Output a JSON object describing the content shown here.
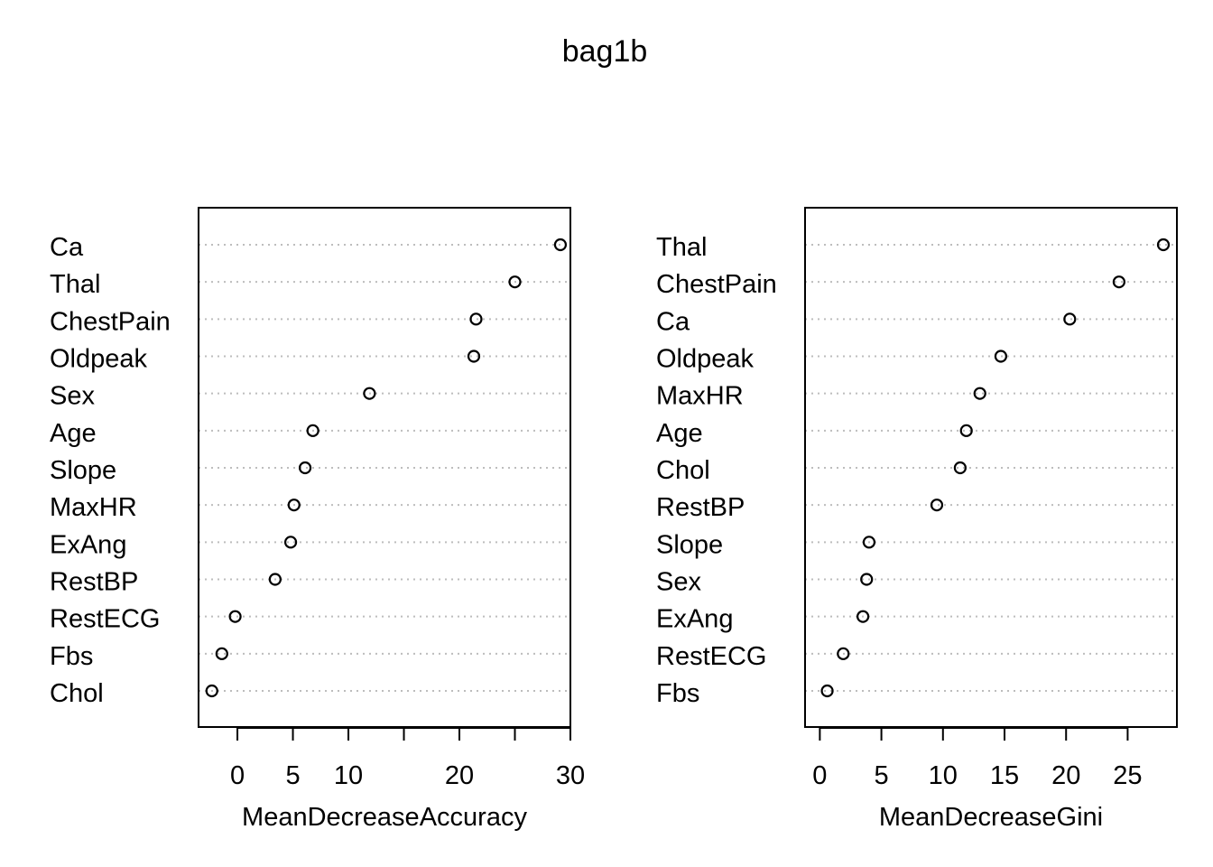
{
  "figure_title": "bag1b",
  "chart_data": [
    {
      "type": "scatter",
      "variant": "dotchart",
      "title": "",
      "xlabel": "MeanDecreaseAccuracy",
      "ylabel": "",
      "xlim": [
        -3.5,
        30
      ],
      "x_ticks": [
        0,
        5,
        10,
        20,
        30
      ],
      "x_tick_marks": [
        0,
        5,
        10,
        15,
        20,
        25,
        30
      ],
      "grid": "dotted horizontal guides",
      "categories": [
        "Ca",
        "Thal",
        "ChestPain",
        "Oldpeak",
        "Sex",
        "Age",
        "Slope",
        "MaxHR",
        "ExAng",
        "RestBP",
        "RestECG",
        "Fbs",
        "Chol"
      ],
      "values": [
        29.1,
        25.0,
        21.5,
        21.3,
        11.9,
        6.8,
        6.1,
        5.1,
        4.8,
        3.4,
        -0.2,
        -1.4,
        -2.3
      ]
    },
    {
      "type": "scatter",
      "variant": "dotchart",
      "title": "",
      "xlabel": "MeanDecreaseGini",
      "ylabel": "",
      "xlim": [
        -1.2,
        29.0
      ],
      "x_ticks": [
        0,
        5,
        10,
        15,
        20,
        25
      ],
      "grid": "dotted horizontal guides",
      "categories": [
        "Thal",
        "ChestPain",
        "Ca",
        "Oldpeak",
        "MaxHR",
        "Age",
        "Chol",
        "RestBP",
        "Slope",
        "Sex",
        "ExAng",
        "RestECG",
        "Fbs"
      ],
      "values": [
        27.9,
        24.3,
        20.3,
        14.7,
        13.0,
        11.9,
        11.4,
        9.5,
        4.0,
        3.8,
        3.5,
        1.9,
        0.6
      ]
    }
  ]
}
